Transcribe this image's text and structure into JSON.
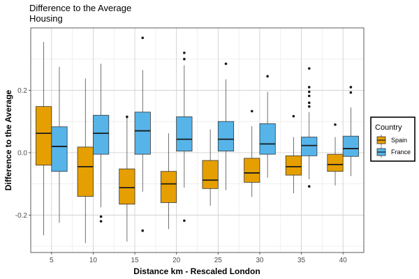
{
  "chart_data": {
    "type": "boxplot",
    "title": "Difference to the Average\nHousing",
    "title_lines": [
      "Difference to the Average",
      "Housing"
    ],
    "xlabel": "Distance km - Rescaled London",
    "ylabel": "Difference to the Average",
    "categories": [
      "5",
      "10",
      "15",
      "20",
      "25",
      "30",
      "35",
      "40"
    ],
    "ylim": [
      -0.32,
      0.4
    ],
    "yticks": [
      -0.2,
      0.0,
      0.2
    ],
    "ytick_labels": [
      "-0.2",
      "0.0",
      "0.2"
    ],
    "grid": true,
    "legend": {
      "title": "Country",
      "position": "right"
    },
    "series": [
      {
        "name": "Spain",
        "color": "#E69F00",
        "boxes": [
          {
            "whisker_low": -0.265,
            "q1": -0.04,
            "median": 0.062,
            "q3": 0.148,
            "whisker_high": 0.355,
            "outliers": []
          },
          {
            "whisker_low": -0.29,
            "q1": -0.14,
            "median": -0.045,
            "q3": 0.018,
            "whisker_high": 0.238,
            "outliers": []
          },
          {
            "whisker_low": -0.285,
            "q1": -0.165,
            "median": -0.112,
            "q3": -0.052,
            "whisker_high": 0.115,
            "outliers": [
              0.115
            ]
          },
          {
            "whisker_low": -0.245,
            "q1": -0.16,
            "median": -0.1,
            "q3": -0.06,
            "whisker_high": 0.062,
            "outliers": []
          },
          {
            "whisker_low": -0.17,
            "q1": -0.115,
            "median": -0.088,
            "q3": -0.025,
            "whisker_high": 0.075,
            "outliers": []
          },
          {
            "whisker_low": -0.142,
            "q1": -0.095,
            "median": -0.065,
            "q3": -0.018,
            "whisker_high": 0.085,
            "outliers": [
              0.133
            ]
          },
          {
            "whisker_low": -0.13,
            "q1": -0.072,
            "median": -0.045,
            "q3": -0.01,
            "whisker_high": 0.05,
            "outliers": [
              0.117
            ]
          },
          {
            "whisker_low": -0.105,
            "q1": -0.06,
            "median": -0.038,
            "q3": -0.005,
            "whisker_high": 0.05,
            "outliers": [
              0.09
            ]
          }
        ]
      },
      {
        "name": "France",
        "color": "#56B4E9",
        "boxes": [
          {
            "whisker_low": -0.225,
            "q1": -0.06,
            "median": 0.02,
            "q3": 0.083,
            "whisker_high": 0.275,
            "outliers": []
          },
          {
            "whisker_low": -0.175,
            "q1": -0.005,
            "median": 0.062,
            "q3": 0.12,
            "whisker_high": 0.285,
            "outliers": [
              -0.205,
              -0.22
            ]
          },
          {
            "whisker_low": -0.125,
            "q1": -0.005,
            "median": 0.07,
            "q3": 0.13,
            "whisker_high": 0.265,
            "outliers": [
              -0.25,
              0.368
            ]
          },
          {
            "whisker_low": -0.112,
            "q1": 0.005,
            "median": 0.043,
            "q3": 0.115,
            "whisker_high": 0.28,
            "outliers": [
              -0.218,
              0.3,
              0.32
            ]
          },
          {
            "whisker_low": -0.12,
            "q1": 0.005,
            "median": 0.043,
            "q3": 0.1,
            "whisker_high": 0.235,
            "outliers": [
              0.285
            ]
          },
          {
            "whisker_low": -0.08,
            "q1": -0.005,
            "median": 0.028,
            "q3": 0.093,
            "whisker_high": 0.195,
            "outliers": [
              0.245
            ]
          },
          {
            "whisker_low": -0.085,
            "q1": -0.01,
            "median": 0.023,
            "q3": 0.05,
            "whisker_high": 0.13,
            "outliers": [
              -0.108,
              0.148,
              0.16,
              0.182,
              0.195,
              0.21,
              0.27
            ]
          },
          {
            "whisker_low": -0.075,
            "q1": -0.012,
            "median": 0.013,
            "q3": 0.053,
            "whisker_high": 0.145,
            "outliers": [
              0.193,
              0.21
            ]
          }
        ]
      }
    ]
  }
}
